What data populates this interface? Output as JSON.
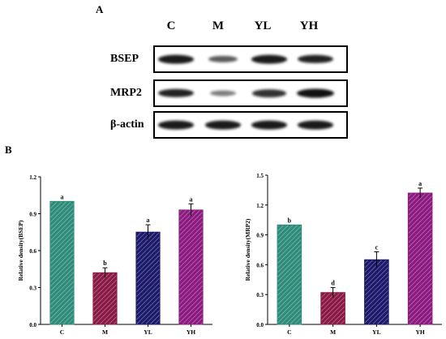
{
  "panel_a": {
    "letter": "A",
    "lanes": [
      "C",
      "M",
      "YL",
      "YH"
    ],
    "blots": [
      {
        "label": "BSEP",
        "intensity": [
          0.95,
          0.55,
          0.95,
          0.9
        ]
      },
      {
        "label": "MRP2",
        "intensity": [
          0.9,
          0.35,
          0.8,
          1.0
        ]
      },
      {
        "label": "β-actin",
        "intensity": [
          0.95,
          0.95,
          0.95,
          0.95
        ]
      }
    ]
  },
  "panel_b": {
    "letter": "B"
  },
  "colors": {
    "C": "#2f8c7a",
    "M": "#8a1a45",
    "YL": "#1c1a6b",
    "YH": "#8c1a80"
  },
  "chart_data": [
    {
      "type": "bar",
      "categories": [
        "C",
        "M",
        "YL",
        "YH"
      ],
      "values": [
        1.0,
        0.42,
        0.75,
        0.93
      ],
      "errors": [
        0.0,
        0.04,
        0.06,
        0.05
      ],
      "letters": [
        "a",
        "b",
        "a",
        "a"
      ],
      "ylabel": "Relative density(BSEP)",
      "ylim": [
        0,
        1.2
      ],
      "yticks": [
        0.0,
        0.3,
        0.6,
        0.9,
        1.2
      ],
      "ytick_labels": [
        "0.0",
        "0.3",
        "0.6",
        "0.9",
        "1.2"
      ]
    },
    {
      "type": "bar",
      "categories": [
        "C",
        "M",
        "YL",
        "YH"
      ],
      "values": [
        1.0,
        0.32,
        0.65,
        1.32
      ],
      "errors": [
        0.0,
        0.05,
        0.08,
        0.05
      ],
      "letters": [
        "b",
        "d",
        "c",
        "a"
      ],
      "ylabel": "Relative density(MRP2)",
      "ylim": [
        0,
        1.5
      ],
      "yticks": [
        0.0,
        0.3,
        0.6,
        0.9,
        1.2,
        1.5
      ],
      "ytick_labels": [
        "0.0",
        "0.3",
        "0.6",
        "0.9",
        "1.2",
        "1.5"
      ]
    }
  ]
}
